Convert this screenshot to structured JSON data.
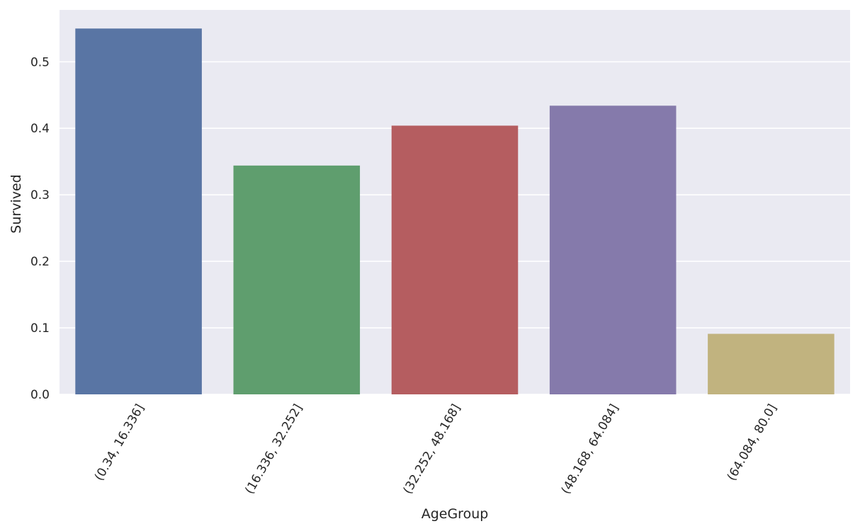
{
  "chart_data": {
    "type": "bar",
    "title": "",
    "xlabel": "AgeGroup",
    "ylabel": "Survived",
    "categories": [
      "(0.34, 16.336]",
      "(16.336, 32.252]",
      "(32.252, 48.168]",
      "(48.168, 64.084]",
      "(64.084, 80.0]"
    ],
    "values": [
      0.55,
      0.344,
      0.404,
      0.434,
      0.091
    ],
    "colors": [
      "#5975a4",
      "#5f9e6e",
      "#b55d60",
      "#857aab",
      "#c1b37f"
    ],
    "ylim": [
      0,
      0.578
    ],
    "yticks": [
      0.0,
      0.1,
      0.2,
      0.3,
      0.4,
      0.5
    ],
    "ytick_labels": [
      "0.0",
      "0.1",
      "0.2",
      "0.3",
      "0.4",
      "0.5"
    ],
    "grid": true,
    "background": "#eaeaf2"
  }
}
